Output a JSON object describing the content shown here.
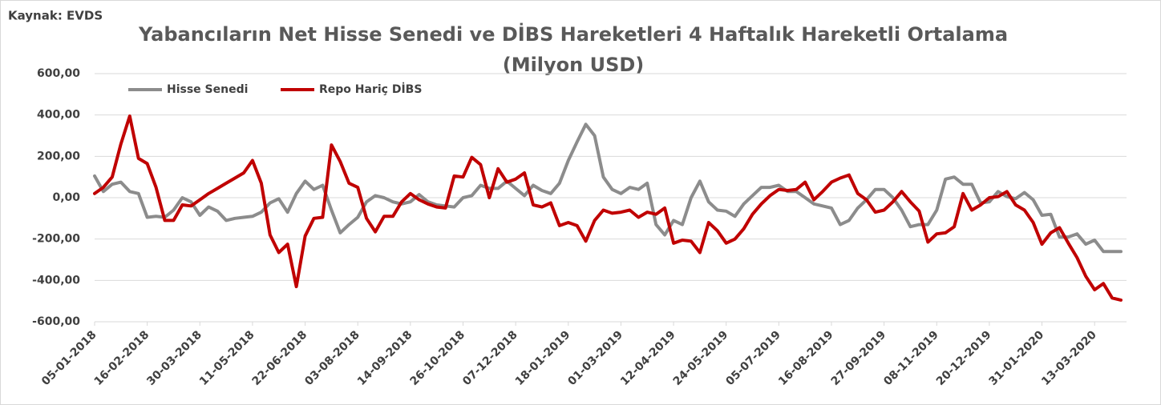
{
  "chart_data": {
    "type": "line",
    "title": "Yabancıların Net Hisse Senedi ve DİBS Hareketleri  4 Haftalık Hareketli Ortalama",
    "subtitle": "(Milyon USD)",
    "source": "Kaynak: EVDS",
    "categories": [
      "05-01-2018",
      null,
      null,
      null,
      null,
      null,
      "16-02-2018",
      null,
      null,
      null,
      null,
      null,
      "30-03-2018",
      null,
      null,
      null,
      null,
      null,
      "11-05-2018",
      null,
      null,
      null,
      null,
      null,
      "22-06-2018",
      null,
      null,
      null,
      null,
      null,
      "03-08-2018",
      null,
      null,
      null,
      null,
      null,
      "14-09-2018",
      null,
      null,
      null,
      null,
      null,
      "26-10-2018",
      null,
      null,
      null,
      null,
      null,
      "07-12-2018",
      null,
      null,
      null,
      null,
      null,
      "18-01-2019",
      null,
      null,
      null,
      null,
      null,
      "01-03-2019",
      null,
      null,
      null,
      null,
      null,
      "12-04-2019",
      null,
      null,
      null,
      null,
      null,
      "24-05-2019",
      null,
      null,
      null,
      null,
      null,
      "05-07-2019",
      null,
      null,
      null,
      null,
      null,
      "16-08-2019",
      null,
      null,
      null,
      null,
      null,
      "27-09-2019",
      null,
      null,
      null,
      null,
      null,
      "08-11-2019",
      null,
      null,
      null,
      null,
      null,
      "20-12-2019",
      null,
      null,
      null,
      null,
      null,
      "31-01-2020",
      null,
      null,
      null,
      null,
      null,
      "13-03-2020",
      null,
      null,
      null
    ],
    "series": [
      {
        "name": "Hisse Senedi",
        "color": "#8c8c8c",
        "values": [
          105,
          30,
          65,
          75,
          30,
          20,
          -95,
          -90,
          -95,
          -60,
          0,
          -20,
          -85,
          -45,
          -65,
          -110,
          -100,
          -95,
          -90,
          -70,
          -25,
          -5,
          -70,
          20,
          80,
          40,
          60,
          -60,
          -170,
          -130,
          -95,
          -20,
          10,
          0,
          -20,
          -30,
          -20,
          15,
          -20,
          -35,
          -40,
          -45,
          0,
          10,
          60,
          45,
          45,
          80,
          45,
          10,
          60,
          35,
          20,
          70,
          180,
          270,
          355,
          300,
          100,
          40,
          20,
          50,
          40,
          70,
          -130,
          -180,
          -110,
          -130,
          0,
          80,
          -20,
          -60,
          -65,
          -90,
          -30,
          10,
          50,
          50,
          60,
          30,
          30,
          0,
          -30,
          -40,
          -50,
          -130,
          -110,
          -50,
          -10,
          40,
          40,
          0,
          -60,
          -140,
          -130,
          -130,
          -60,
          90,
          100,
          65,
          65,
          -25,
          -20,
          30,
          5,
          -5,
          25,
          -10,
          -85,
          -80,
          -190,
          -190,
          -175,
          -225,
          -205,
          -260,
          -260,
          -260
        ]
      },
      {
        "name": "Repo Hariç DİBS",
        "color": "#c00000",
        "values": [
          20,
          50,
          100,
          260,
          395,
          190,
          165,
          50,
          -110,
          -110,
          -35,
          -40,
          -10,
          20,
          45,
          70,
          95,
          120,
          180,
          70,
          -180,
          -265,
          -225,
          -430,
          -185,
          -100,
          -95,
          255,
          175,
          70,
          50,
          -100,
          -165,
          -90,
          -90,
          -20,
          20,
          -10,
          -30,
          -45,
          -50,
          105,
          100,
          195,
          160,
          0,
          140,
          75,
          90,
          120,
          -35,
          -45,
          -25,
          -135,
          -120,
          -135,
          -210,
          -110,
          -60,
          -75,
          -70,
          -60,
          -95,
          -70,
          -80,
          -50,
          -220,
          -205,
          -210,
          -265,
          -120,
          -160,
          -220,
          -200,
          -150,
          -80,
          -30,
          10,
          40,
          35,
          40,
          75,
          -10,
          30,
          75,
          95,
          110,
          20,
          -10,
          -70,
          -60,
          -20,
          30,
          -20,
          -65,
          -215,
          -175,
          -170,
          -140,
          20,
          -60,
          -35,
          0,
          5,
          30,
          -35,
          -60,
          -120,
          -225,
          -170,
          -145,
          -220,
          -290,
          -380,
          -445,
          -415,
          -485,
          -495
        ]
      }
    ],
    "ylim": [
      -600,
      600
    ],
    "yticks": [
      {
        "value": -600,
        "label": "-600,00"
      },
      {
        "value": -400,
        "label": "-400,00"
      },
      {
        "value": -200,
        "label": "-200,00"
      },
      {
        "value": 0,
        "label": "0,00"
      },
      {
        "value": 200,
        "label": "200,00"
      },
      {
        "value": 400,
        "label": "400,00"
      },
      {
        "value": 600,
        "label": "600,00"
      }
    ],
    "grid": true,
    "legend": "top-left"
  }
}
